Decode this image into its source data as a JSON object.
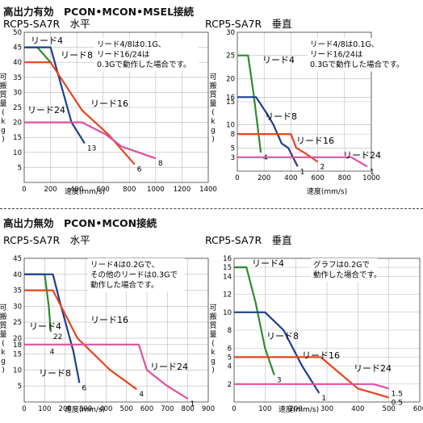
{
  "sections": [
    {
      "title": "高出力有効　PCON•MCON•MSEL接続"
    },
    {
      "title": "高出力無効　PCON•MCON接続"
    }
  ],
  "colors": {
    "lead4": "#2e8b2e",
    "lead8": "#1e3f8f",
    "lead16": "#e8431c",
    "lead24": "#e0509f",
    "axis": "#444444",
    "grid": "#bbbbbb"
  },
  "chart_data": [
    {
      "type": "line",
      "title": "RCP5-SA7R　水平",
      "xlabel": "速度(mm/s)",
      "ylabel": "可搬質量(kg)",
      "xlim": [
        0,
        1400
      ],
      "ylim": [
        0,
        50
      ],
      "xticks": [
        0,
        200,
        400,
        600,
        800,
        1000,
        1200,
        1400
      ],
      "yticks": [
        5,
        10,
        15,
        20,
        25,
        30,
        35,
        40,
        45,
        50
      ],
      "grid": true,
      "note": [
        "リード4/8は0.1G、",
        "リード16/24は",
        "0.3Gで動作した場合です。"
      ],
      "series": [
        {
          "name": "リード4",
          "color_key": "lead4",
          "x": [
            0,
            100,
            200,
            210
          ],
          "y": [
            45,
            45,
            40,
            40
          ],
          "end_label": ""
        },
        {
          "name": "リード8",
          "color_key": "lead8",
          "x": [
            0,
            200,
            290,
            360,
            460
          ],
          "y": [
            45,
            45,
            31,
            20,
            13
          ],
          "end_label": "13"
        },
        {
          "name": "リード16",
          "color_key": "lead16",
          "x": [
            0,
            200,
            440,
            640,
            840
          ],
          "y": [
            40,
            40,
            24,
            16,
            6
          ],
          "end_label": "6"
        },
        {
          "name": "リード24",
          "color_key": "lead24",
          "x": [
            0,
            440,
            620,
            680,
            740,
            1000
          ],
          "y": [
            20,
            20,
            16,
            14,
            12,
            8
          ],
          "end_label": "8"
        }
      ]
    },
    {
      "type": "line",
      "title": "RCP5-SA7R　垂直",
      "xlabel": "速度(mm/s)",
      "ylabel": "可搬質量(kg)",
      "xlim": [
        0,
        1000
      ],
      "ylim": [
        0,
        30
      ],
      "xticks": [
        0,
        200,
        400,
        600,
        800,
        1000
      ],
      "yticks": [
        3,
        5,
        8,
        10,
        15,
        16,
        20,
        25,
        30
      ],
      "grid": true,
      "note": [
        "リード4/8は0.1G、",
        "リード16/24は",
        "0.3Gで動作した場合です。"
      ],
      "series": [
        {
          "name": "リード4",
          "color_key": "lead4",
          "x": [
            0,
            80,
            120,
            150,
            175
          ],
          "y": [
            25,
            25,
            17,
            10,
            4
          ],
          "end_label": "4"
        },
        {
          "name": "リード8",
          "color_key": "lead8",
          "x": [
            0,
            140,
            230,
            270,
            330,
            380,
            450
          ],
          "y": [
            16,
            16,
            12,
            10,
            6,
            5,
            1
          ],
          "end_label": "1"
        },
        {
          "name": "リード16",
          "color_key": "lead16",
          "x": [
            0,
            400,
            440,
            500,
            600
          ],
          "y": [
            8,
            8,
            5,
            4,
            2
          ],
          "end_label": "2"
        },
        {
          "name": "リード24",
          "color_key": "lead24",
          "x": [
            0,
            850,
            970
          ],
          "y": [
            3,
            3,
            1
          ],
          "end_label": "1"
        }
      ]
    },
    {
      "type": "line",
      "title": "RCP5-SA7R　水平",
      "xlabel": "速度(mm/s)",
      "ylabel": "可搬質量(kg)",
      "xlim": [
        0,
        900
      ],
      "ylim": [
        0,
        45
      ],
      "xticks": [
        0,
        100,
        200,
        300,
        400,
        500,
        600,
        700,
        800,
        900
      ],
      "yticks": [
        5,
        10,
        15,
        18,
        20,
        25,
        30,
        35,
        40,
        45
      ],
      "grid": true,
      "note": [
        "リード4は0.2Gで、",
        "その他のリードは0.3Gで",
        "動作した場合です。"
      ],
      "series": [
        {
          "name": "リード4",
          "color_key": "lead4",
          "x": [
            0,
            100,
            110,
            120,
            130
          ],
          "y": [
            40,
            40,
            35,
            30,
            22
          ],
          "end_label": "22"
        },
        {
          "name": "リード8",
          "color_key": "lead8",
          "x": [
            0,
            140,
            180,
            240,
            270
          ],
          "y": [
            40,
            40,
            30,
            16,
            6
          ],
          "end_label": "6"
        },
        {
          "name": "リード16",
          "color_key": "lead16",
          "x": [
            0,
            140,
            260,
            420,
            550
          ],
          "y": [
            35,
            35,
            20,
            10,
            4
          ],
          "end_label": "4"
        },
        {
          "name": "リード24",
          "color_key": "lead24",
          "x": [
            0,
            560,
            600,
            700,
            800
          ],
          "y": [
            18,
            18,
            10,
            5,
            1
          ],
          "end_label": "1"
        }
      ],
      "extra_labels": [
        {
          "text": "4",
          "x": 125,
          "y": 14,
          "color_key": "lead4"
        }
      ]
    },
    {
      "type": "line",
      "title": "RCP5-SA7R　垂直",
      "xlabel": "速度(mm/s)",
      "ylabel": "可搬質量(kg)",
      "xlim": [
        0,
        600
      ],
      "ylim": [
        0,
        16
      ],
      "xticks": [
        0,
        100,
        200,
        300,
        400,
        500,
        600
      ],
      "yticks": [
        2,
        4,
        5,
        6,
        8,
        10,
        12,
        14,
        15,
        16
      ],
      "grid": true,
      "note": [
        "グラフは0.2Gで",
        "動作した場合です。"
      ],
      "series": [
        {
          "name": "リード4",
          "color_key": "lead4",
          "x": [
            0,
            40,
            70,
            100,
            130
          ],
          "y": [
            15,
            15,
            11,
            6,
            3
          ],
          "end_label": "3"
        },
        {
          "name": "リード8",
          "color_key": "lead8",
          "x": [
            0,
            100,
            160,
            220,
            275
          ],
          "y": [
            10,
            10,
            8,
            4,
            1
          ],
          "end_label": "1"
        },
        {
          "name": "リード16",
          "color_key": "lead16",
          "x": [
            0,
            280,
            400,
            500
          ],
          "y": [
            5,
            5,
            1.5,
            0.5
          ],
          "end_label": "0.5"
        },
        {
          "name": "リード24",
          "color_key": "lead24",
          "x": [
            0,
            450,
            500
          ],
          "y": [
            2,
            2,
            1.5
          ],
          "end_label": "1.5"
        }
      ]
    }
  ]
}
